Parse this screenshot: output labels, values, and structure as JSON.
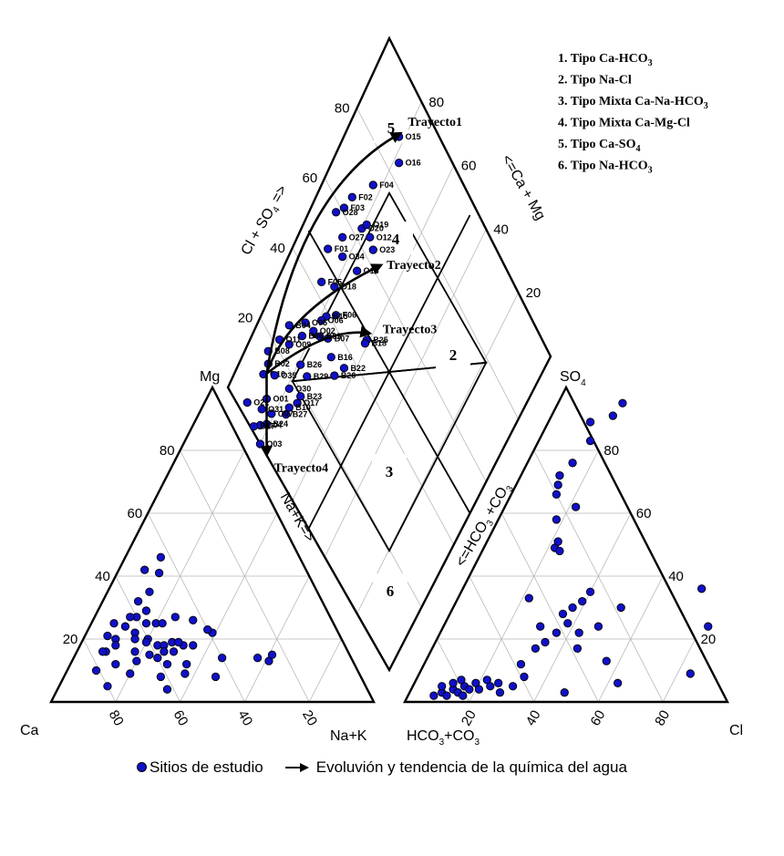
{
  "chart_data": {
    "type": "scatter",
    "subtype": "piper-diagram",
    "cation_triangle": {
      "corners": [
        "Mg",
        "Ca",
        "Na+K"
      ],
      "axis_titles": [
        "Mg",
        "Ca",
        "Na+K"
      ],
      "tick_values": [
        20,
        40,
        60,
        80
      ],
      "points": [
        {
          "ca": 65,
          "na": 11,
          "mg": 24
        },
        {
          "ca": 60,
          "na": 13,
          "mg": 27
        },
        {
          "ca": 56,
          "na": 15,
          "mg": 29
        },
        {
          "ca": 57,
          "na": 11,
          "mg": 32
        },
        {
          "ca": 52,
          "na": 13,
          "mg": 35
        },
        {
          "ca": 46,
          "na": 13,
          "mg": 41
        },
        {
          "ca": 50,
          "na": 8,
          "mg": 42
        },
        {
          "ca": 43,
          "na": 11,
          "mg": 46
        },
        {
          "ca": 70,
          "na": 10,
          "mg": 20
        },
        {
          "ca": 72,
          "na": 7,
          "mg": 21
        },
        {
          "ca": 75,
          "na": 9,
          "mg": 16
        },
        {
          "ca": 71,
          "na": 11,
          "mg": 18
        },
        {
          "ca": 68,
          "na": 7,
          "mg": 25
        },
        {
          "ca": 62,
          "na": 11,
          "mg": 27
        },
        {
          "ca": 63,
          "na": 15,
          "mg": 22
        },
        {
          "ca": 60,
          "na": 20,
          "mg": 20
        },
        {
          "ca": 58,
          "na": 17,
          "mg": 25
        },
        {
          "ca": 55,
          "na": 20,
          "mg": 25
        },
        {
          "ca": 53,
          "na": 22,
          "mg": 25
        },
        {
          "ca": 48,
          "na": 25,
          "mg": 27
        },
        {
          "ca": 43,
          "na": 31,
          "mg": 26
        },
        {
          "ca": 61,
          "na": 20,
          "mg": 19
        },
        {
          "ca": 58,
          "na": 24,
          "mg": 18
        },
        {
          "ca": 56,
          "na": 26,
          "mg": 18
        },
        {
          "ca": 53,
          "na": 28,
          "mg": 19
        },
        {
          "ca": 50,
          "na": 32,
          "mg": 18
        },
        {
          "ca": 62,
          "na": 23,
          "mg": 15
        },
        {
          "ca": 60,
          "na": 26,
          "mg": 14
        },
        {
          "ca": 54,
          "na": 30,
          "mg": 16
        },
        {
          "ca": 57,
          "na": 27,
          "mg": 16
        },
        {
          "ca": 47,
          "na": 35,
          "mg": 18
        },
        {
          "ca": 39,
          "na": 39,
          "mg": 22
        },
        {
          "ca": 40,
          "na": 37,
          "mg": 23
        },
        {
          "ca": 29,
          "na": 57,
          "mg": 14
        },
        {
          "ca": 26,
          "na": 61,
          "mg": 13
        },
        {
          "ca": 24,
          "na": 61,
          "mg": 15
        },
        {
          "ca": 40,
          "na": 46,
          "mg": 14
        },
        {
          "ca": 45,
          "na": 47,
          "mg": 8
        },
        {
          "ca": 54,
          "na": 37,
          "mg": 9
        },
        {
          "ca": 62,
          "na": 30,
          "mg": 8
        },
        {
          "ca": 71,
          "na": 20,
          "mg": 9
        },
        {
          "ca": 81,
          "na": 9,
          "mg": 10
        },
        {
          "ca": 76,
          "na": 8,
          "mg": 16
        },
        {
          "ca": 67,
          "na": 20,
          "mg": 13
        },
        {
          "ca": 74,
          "na": 14,
          "mg": 12
        },
        {
          "ca": 80,
          "na": 15,
          "mg": 5
        },
        {
          "ca": 62,
          "na": 34,
          "mg": 4
        },
        {
          "ca": 52,
          "na": 36,
          "mg": 12
        },
        {
          "ca": 64,
          "na": 16,
          "mg": 20
        },
        {
          "ca": 66,
          "na": 18,
          "mg": 16
        },
        {
          "ca": 51,
          "na": 30,
          "mg": 19
        },
        {
          "ca": 58,
          "na": 30,
          "mg": 12
        }
      ]
    },
    "anion_triangle": {
      "corners": [
        "SO4",
        "HCO3+CO3",
        "Cl"
      ],
      "axis_titles": [
        "SO4",
        "HCO3+CO3",
        "Cl",
        "<=HCO3 +CO3"
      ],
      "tick_values": [
        20,
        40,
        60,
        80
      ],
      "points": [
        {
          "cl": 8,
          "so4": 2,
          "hco3": 90
        },
        {
          "cl": 10,
          "so4": 3,
          "hco3": 87
        },
        {
          "cl": 12,
          "so4": 2,
          "hco3": 86
        },
        {
          "cl": 13,
          "so4": 4,
          "hco3": 83
        },
        {
          "cl": 15,
          "so4": 3,
          "hco3": 82
        },
        {
          "cl": 16,
          "so4": 5,
          "hco3": 79
        },
        {
          "cl": 17,
          "so4": 2,
          "hco3": 81
        },
        {
          "cl": 18,
          "so4": 4,
          "hco3": 78
        },
        {
          "cl": 19,
          "so4": 6,
          "hco3": 75
        },
        {
          "cl": 21,
          "so4": 4,
          "hco3": 75
        },
        {
          "cl": 22,
          "so4": 7,
          "hco3": 71
        },
        {
          "cl": 24,
          "so4": 5,
          "hco3": 71
        },
        {
          "cl": 26,
          "so4": 6,
          "hco3": 68
        },
        {
          "cl": 28,
          "so4": 3,
          "hco3": 69
        },
        {
          "cl": 9,
          "so4": 5,
          "hco3": 86
        },
        {
          "cl": 12,
          "so4": 6,
          "hco3": 82
        },
        {
          "cl": 14,
          "so4": 7,
          "hco3": 79
        },
        {
          "cl": 31,
          "so4": 5,
          "hco3": 64
        },
        {
          "cl": 33,
          "so4": 8,
          "hco3": 59
        },
        {
          "cl": 30,
          "so4": 12,
          "hco3": 58
        },
        {
          "cl": 32,
          "so4": 17,
          "hco3": 51
        },
        {
          "cl": 30,
          "so4": 24,
          "hco3": 46
        },
        {
          "cl": 34,
          "so4": 19,
          "hco3": 47
        },
        {
          "cl": 36,
          "so4": 22,
          "hco3": 42
        },
        {
          "cl": 38,
          "so4": 25,
          "hco3": 37
        },
        {
          "cl": 35,
          "so4": 28,
          "hco3": 37
        },
        {
          "cl": 37,
          "so4": 30,
          "hco3": 33
        },
        {
          "cl": 39,
          "so4": 32,
          "hco3": 29
        },
        {
          "cl": 40,
          "so4": 35,
          "hco3": 25
        },
        {
          "cl": 43,
          "so4": 22,
          "hco3": 35
        },
        {
          "cl": 45,
          "so4": 17,
          "hco3": 38
        },
        {
          "cl": 48,
          "so4": 24,
          "hco3": 28
        },
        {
          "cl": 52,
          "so4": 30,
          "hco3": 18
        },
        {
          "cl": 56,
          "so4": 13,
          "hco3": 31
        },
        {
          "cl": 63,
          "so4": 6,
          "hco3": 31
        },
        {
          "cl": 48,
          "so4": 3,
          "hco3": 49
        },
        {
          "cl": 84,
          "so4": 9,
          "hco3": 7
        },
        {
          "cl": 82,
          "so4": 24,
          "hco3": -6
        },
        {
          "cl": 74,
          "so4": 36,
          "hco3": -10
        },
        {
          "cl": 22,
          "so4": 33,
          "hco3": 45
        },
        {
          "cl": 22,
          "so4": 49,
          "hco3": 29
        },
        {
          "cl": 22,
          "so4": 51,
          "hco3": 27
        },
        {
          "cl": 24,
          "so4": 48,
          "hco3": 28
        },
        {
          "cl": 18,
          "so4": 58,
          "hco3": 24
        },
        {
          "cl": 14,
          "so4": 66,
          "hco3": 20
        },
        {
          "cl": 13,
          "so4": 69,
          "hco3": 18
        },
        {
          "cl": 12,
          "so4": 72,
          "hco3": 16
        },
        {
          "cl": 14,
          "so4": 76,
          "hco3": 10
        },
        {
          "cl": 16,
          "so4": 83,
          "hco3": 1
        },
        {
          "cl": 13,
          "so4": 89,
          "hco3": -2
        },
        {
          "cl": 19,
          "so4": 91,
          "hco3": -10
        },
        {
          "cl": 20,
          "so4": 95,
          "hco3": -15
        },
        {
          "cl": 22,
          "so4": 62,
          "hco3": 16
        }
      ]
    },
    "diamond": {
      "axis_titles": [
        "Cl + SO4 =>",
        "<=Ca + Mg",
        "Na+K=>"
      ],
      "tick_values": [
        20,
        40,
        60,
        80
      ],
      "zones": [
        "1",
        "2",
        "3",
        "4",
        "5",
        "6"
      ],
      "samples": [
        {
          "id": "O15",
          "cl_so4": 88,
          "ca_mg": 82
        },
        {
          "id": "O16",
          "cl_so4": 84,
          "ca_mg": 78
        },
        {
          "id": "F04",
          "cl_so4": 73,
          "ca_mg": 83
        },
        {
          "id": "F02",
          "cl_so4": 65,
          "ca_mg": 88
        },
        {
          "id": "F03",
          "cl_so4": 61,
          "ca_mg": 89
        },
        {
          "id": "O28",
          "cl_so4": 58,
          "ca_mg": 91
        },
        {
          "id": "O20",
          "cl_so4": 63,
          "ca_mg": 80
        },
        {
          "id": "O19",
          "cl_so4": 65,
          "ca_mg": 79
        },
        {
          "id": "O12",
          "cl_so4": 64,
          "ca_mg": 76
        },
        {
          "id": "O23",
          "cl_so4": 63,
          "ca_mg": 73
        },
        {
          "id": "O27",
          "cl_so4": 56,
          "ca_mg": 85
        },
        {
          "id": "O34",
          "cl_so4": 53,
          "ca_mg": 82
        },
        {
          "id": "O13",
          "cl_so4": 55,
          "ca_mg": 75
        },
        {
          "id": "F01",
          "cl_so4": 50,
          "ca_mg": 88
        },
        {
          "id": "O18",
          "cl_so4": 46,
          "ca_mg": 80
        },
        {
          "id": "F05",
          "cl_so4": 43,
          "ca_mg": 85
        },
        {
          "id": "F06",
          "cl_so4": 42,
          "ca_mg": 75
        },
        {
          "id": "B15",
          "cl_so4": 39,
          "ca_mg": 78
        },
        {
          "id": "O06",
          "cl_so4": 37,
          "ca_mg": 79
        },
        {
          "id": "B07",
          "cl_so4": 36,
          "ca_mg": 74
        },
        {
          "id": "B05",
          "cl_so4": 34,
          "ca_mg": 77
        },
        {
          "id": "O02",
          "cl_so4": 33,
          "ca_mg": 80
        },
        {
          "id": "O05",
          "cl_so4": 32,
          "ca_mg": 84
        },
        {
          "id": "B06",
          "cl_so4": 29,
          "ca_mg": 83
        },
        {
          "id": "B04",
          "cl_so4": 27,
          "ca_mg": 89
        },
        {
          "id": "O09",
          "cl_so4": 24,
          "ca_mg": 86
        },
        {
          "id": "O11",
          "cl_so4": 22,
          "ca_mg": 90
        },
        {
          "id": "B08",
          "cl_so4": 17,
          "ca_mg": 92
        },
        {
          "id": "B02",
          "cl_so4": 15,
          "ca_mg": 90
        },
        {
          "id": "O10",
          "cl_so4": 12,
          "ca_mg": 90
        },
        {
          "id": "O35",
          "cl_so4": 15,
          "ca_mg": 86
        },
        {
          "id": "B26",
          "cl_so4": 24,
          "ca_mg": 79
        },
        {
          "id": "B29",
          "cl_so4": 24,
          "ca_mg": 75
        },
        {
          "id": "O30",
          "cl_so4": 17,
          "ca_mg": 79
        },
        {
          "id": "B23",
          "cl_so4": 19,
          "ca_mg": 74
        },
        {
          "id": "O17",
          "cl_so4": 17,
          "ca_mg": 74
        },
        {
          "id": "B10",
          "cl_so4": 14,
          "ca_mg": 76
        },
        {
          "id": "B27",
          "cl_so4": 12,
          "ca_mg": 76
        },
        {
          "id": "O07",
          "cl_so4": 8,
          "ca_mg": 81
        },
        {
          "id": "O01",
          "cl_so4": 9,
          "ca_mg": 85
        },
        {
          "id": "O31",
          "cl_so4": 6,
          "ca_mg": 85
        },
        {
          "id": "B24",
          "cl_so4": 5,
          "ca_mg": 81
        },
        {
          "id": "O04",
          "cl_so4": 3,
          "ca_mg": 83
        },
        {
          "id": "O21",
          "cl_so4": 3,
          "ca_mg": 91
        },
        {
          "id": "B17",
          "cl_so4": 1,
          "ca_mg": 85
        },
        {
          "id": "O03",
          "cl_so4": 0,
          "ca_mg": 80
        },
        {
          "id": "B25",
          "cl_so4": 47,
          "ca_mg": 61
        },
        {
          "id": "B18",
          "cl_so4": 46,
          "ca_mg": 61
        },
        {
          "id": "B16",
          "cl_so4": 34,
          "ca_mg": 70
        },
        {
          "id": "B22",
          "cl_so4": 36,
          "ca_mg": 64
        },
        {
          "id": "B20",
          "cl_so4": 32,
          "ca_mg": 66
        }
      ],
      "trajectories": [
        {
          "label": "Trayecto1",
          "to": {
            "cl_so4": 89,
            "ca_mg": 82
          }
        },
        {
          "label": "Trayecto2",
          "to": {
            "cl_so4": 63,
            "ca_mg": 68
          }
        },
        {
          "label": "Trayecto3",
          "to": {
            "cl_so4": 49,
            "ca_mg": 61
          }
        },
        {
          "label": "Trayecto4",
          "to": {
            "cl_so4": 0,
            "ca_mg": 76
          }
        }
      ],
      "trajectory_origin": {
        "cl_so4": 13,
        "ca_mg": 89
      }
    },
    "legend": {
      "types": [
        {
          "prefix": "1. Tipo Ca-HCO",
          "sub": "3"
        },
        {
          "prefix": "2. Tipo Na-Cl",
          "sub": ""
        },
        {
          "prefix": "3. Tipo Mixta Ca-Na-HCO",
          "sub": "3"
        },
        {
          "prefix": "4. Tipo Mixta Ca-Mg-Cl",
          "sub": ""
        },
        {
          "prefix": "5. Tipo Ca-SO",
          "sub": "4"
        },
        {
          "prefix": "6. Tipo Na-HCO",
          "sub": "3"
        }
      ],
      "position": "top-right"
    },
    "key": {
      "points_label": "Sitios de estudio",
      "arrow_label": "Evoluvión y tendencia de la química del agua"
    }
  }
}
